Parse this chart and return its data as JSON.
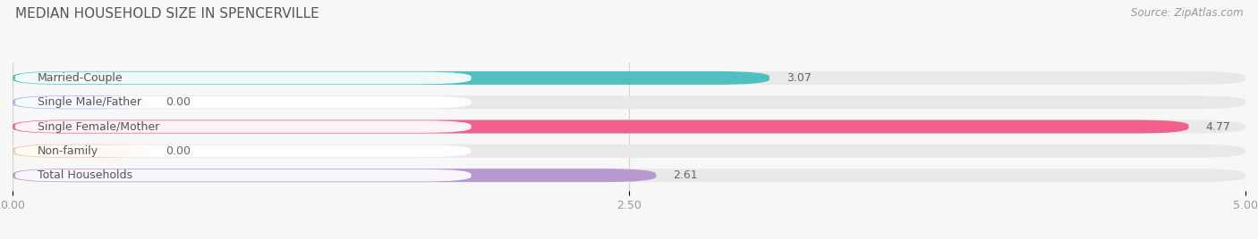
{
  "title": "MEDIAN HOUSEHOLD SIZE IN SPENCERVILLE",
  "source": "Source: ZipAtlas.com",
  "categories": [
    "Married-Couple",
    "Single Male/Father",
    "Single Female/Mother",
    "Non-family",
    "Total Households"
  ],
  "values": [
    3.07,
    0.0,
    4.77,
    0.0,
    2.61
  ],
  "bar_colors": [
    "#50bfbf",
    "#9db8e8",
    "#f0608a",
    "#f0c898",
    "#b898d0"
  ],
  "xlim": [
    0,
    5.0
  ],
  "xticks": [
    0.0,
    2.5,
    5.0
  ],
  "xtick_labels": [
    "0.00",
    "2.50",
    "5.00"
  ],
  "background_color": "#f7f7f7",
  "bar_bg_color": "#e8e8e8",
  "title_fontsize": 11,
  "label_fontsize": 9,
  "value_fontsize": 9,
  "source_fontsize": 8.5
}
